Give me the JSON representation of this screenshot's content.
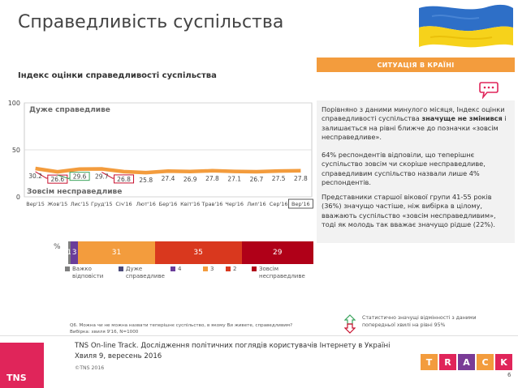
{
  "header": {
    "title": "Справедливість суспільства",
    "badge": "СИТУАЦІЯ В КРАЇНІ",
    "subtitle": "Індекс оцінки справедливості суспільства"
  },
  "colors": {
    "line": "#f39c3d",
    "badge": "#f39c3d",
    "tns_pink": "#e0255a",
    "sig_up": "#3aa35c",
    "sig_down": "#c8102e"
  },
  "chart_data": [
    {
      "type": "line",
      "title": "",
      "xlabel": "",
      "ylabel": "",
      "ylim": [
        0,
        100
      ],
      "yticks": [
        0,
        50,
        100
      ],
      "grid": true,
      "top_label": "Дуже справедливе",
      "bottom_label": "Зовсім несправедливе",
      "categories": [
        "Вер'15",
        "Жов'15",
        "Лис'15",
        "Груд'15",
        "Січ'16",
        "Лют'16",
        "Бер'16",
        "Квіт'16",
        "Трав'16",
        "Чер'16",
        "Лип'16",
        "Сер'16",
        "Вер'16"
      ],
      "series": [
        {
          "values": [
            30.2,
            26.6,
            29.6,
            29.7,
            26.8,
            25.8,
            27.4,
            26.9,
            27.8,
            27.1,
            26.7,
            27.5,
            27.8
          ],
          "labels": [
            "30.2",
            "26.6",
            "29.6",
            "29.7",
            "26.8",
            "25.8",
            "27.4",
            "26.9",
            "27.8",
            "27.1",
            "26.7",
            "27.5",
            "27.8"
          ]
        }
      ],
      "significance": {
        "down": [
          "Жов'15",
          "Січ'16"
        ],
        "up": [
          "Лис'15"
        ]
      },
      "highlighted_category": "Вер'16"
    },
    {
      "type": "bar",
      "stacked": true,
      "orientation": "horizontal",
      "unit": "%",
      "series": [
        {
          "name": "Важко відповісти",
          "value": 1,
          "color": "#7f7f7f"
        },
        {
          "name": "Дуже справедливе",
          "value": 0,
          "color": "#4a4a7a"
        },
        {
          "name": "4",
          "value": 3,
          "label": "3",
          "color": "#6a3d9a"
        },
        {
          "name": "3",
          "value": 31,
          "label": "31",
          "color": "#f39c3d"
        },
        {
          "name": "2",
          "value": 35,
          "label": "35",
          "color": "#d9381e"
        },
        {
          "name": "Зовсім несправедливе",
          "value": 29,
          "label": "29",
          "color": "#b00018"
        }
      ],
      "start_label": "1"
    }
  ],
  "legend": {
    "items": [
      {
        "label": "Важко відповісти",
        "color": "#7f7f7f"
      },
      {
        "label": "Дуже справедливе",
        "color": "#4a4a7a"
      },
      {
        "label": "4",
        "color": "#6a3d9a"
      },
      {
        "label": "3",
        "color": "#f39c3d"
      },
      {
        "label": "2",
        "color": "#d9381e"
      },
      {
        "label": "Зовсім несправедливе",
        "color": "#b00018"
      }
    ]
  },
  "panel": {
    "p1_a": "Порівняно з даними минулого місяця, Індекс оцінки справедливості суспільства ",
    "p1_b": "значуще не змінився",
    "p1_c": " і залишається на рівні ближче до позначки «зовсім несправедливе».",
    "p2": "64% респондентів відповіли, що теперішнє суспільство зовсім чи скоріше несправедливе, справедливим суспільство назвали лише 4% респондентів.",
    "p3": "Представники старшої вікової групи 41-55 років (36%) значущо частіше, ніж вибірка в цілому, вважають суспільство «зовсім несправедливим», тоді як молодь так вважає значущо рідше (22%)."
  },
  "notes": {
    "question": "Q6. Можна чи не можна назвати теперішнє суспільство, в якому Ви живете, справедливим?",
    "sample": "Вибірка: хвиля 9'16, N=1000",
    "stat_note": "Статистично значущі відмінності з даними попередньої хвилі на рівні 95%"
  },
  "footer": {
    "line1": "TNS On-line Track. Дослідження політичних поглядів користувачів Інтернету в Україні",
    "line2": "Хвиля 9, вересень 2016",
    "copyright": "©TNS 2016",
    "logo": "TNS",
    "track_letters": [
      "T",
      "R",
      "A",
      "C",
      "K"
    ],
    "track_colors": [
      "#f39c3d",
      "#e0255a",
      "#7a3b96",
      "#f39c3d",
      "#e0255a"
    ],
    "page": "6"
  }
}
